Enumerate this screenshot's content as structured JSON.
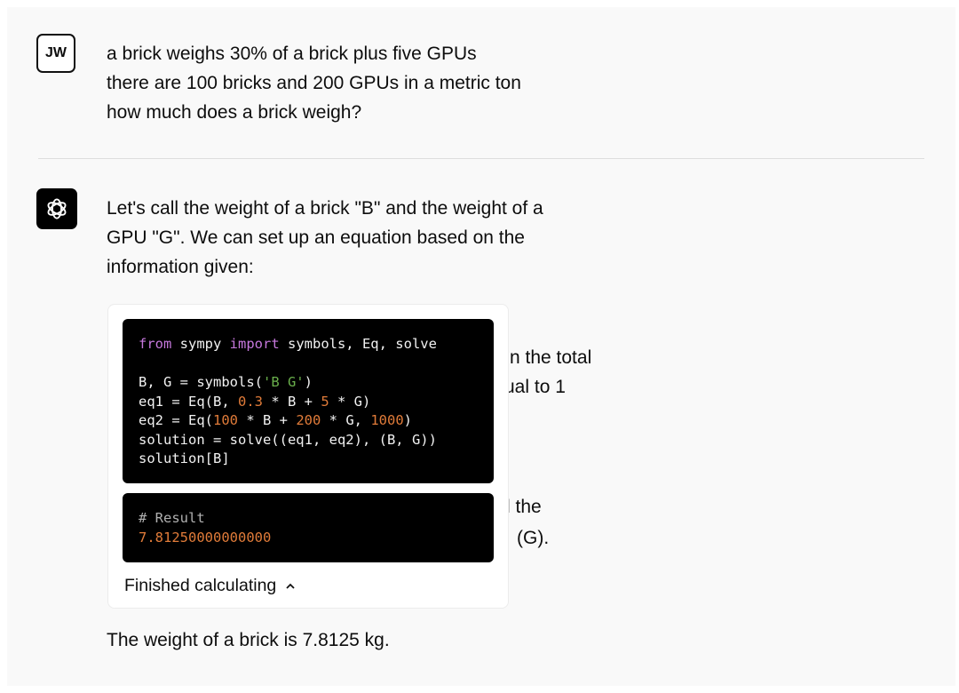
{
  "user": {
    "avatar_initials": "JW",
    "lines": [
      "a brick weighs 30% of a brick plus five GPUs",
      "there are 100 bricks and 200 GPUs in a metric ton",
      "how much does a brick weigh?"
    ]
  },
  "assistant": {
    "avatar_icon": "openai-logo-icon",
    "intro_lines": [
      "Let's call the weight of a brick \"B\" and the weight of a",
      "GPU \"G\". We can set up an equation based on the",
      "information given:"
    ],
    "occluded_fragments": [
      "n the total",
      "ual to 1",
      "l the",
      "(G)."
    ],
    "code_lines": [
      [
        {
          "t": "from",
          "c": "kw"
        },
        {
          "t": " sympy ",
          "c": ""
        },
        {
          "t": "import",
          "c": "kw"
        },
        {
          "t": " symbols, Eq, solve",
          "c": ""
        }
      ],
      [],
      [
        {
          "t": "B, G = symbols(",
          "c": ""
        },
        {
          "t": "'B G'",
          "c": "str"
        },
        {
          "t": ")",
          "c": ""
        }
      ],
      [
        {
          "t": "eq1 = Eq(B, ",
          "c": ""
        },
        {
          "t": "0.3",
          "c": "num"
        },
        {
          "t": " * B + ",
          "c": ""
        },
        {
          "t": "5",
          "c": "num"
        },
        {
          "t": " * G)",
          "c": ""
        }
      ],
      [
        {
          "t": "eq2 = Eq(",
          "c": ""
        },
        {
          "t": "100",
          "c": "num"
        },
        {
          "t": " * B + ",
          "c": ""
        },
        {
          "t": "200",
          "c": "num"
        },
        {
          "t": " * G, ",
          "c": ""
        },
        {
          "t": "1000",
          "c": "num"
        },
        {
          "t": ")",
          "c": ""
        }
      ],
      [
        {
          "t": "solution = solve((eq1, eq2), (B, G))",
          "c": ""
        }
      ],
      [
        {
          "t": "solution[B]",
          "c": ""
        }
      ]
    ],
    "result_comment": "# Result",
    "result_value": "7.81250000000000",
    "status_label": "Finished calculating",
    "status_icon": "chevron-up-icon",
    "final_answer": "The weight of a brick is 7.8125 kg."
  },
  "colors": {
    "keyword": "#c678dd",
    "string": "#6ab04c",
    "number": "#e07b39",
    "code_bg": "#000000"
  }
}
